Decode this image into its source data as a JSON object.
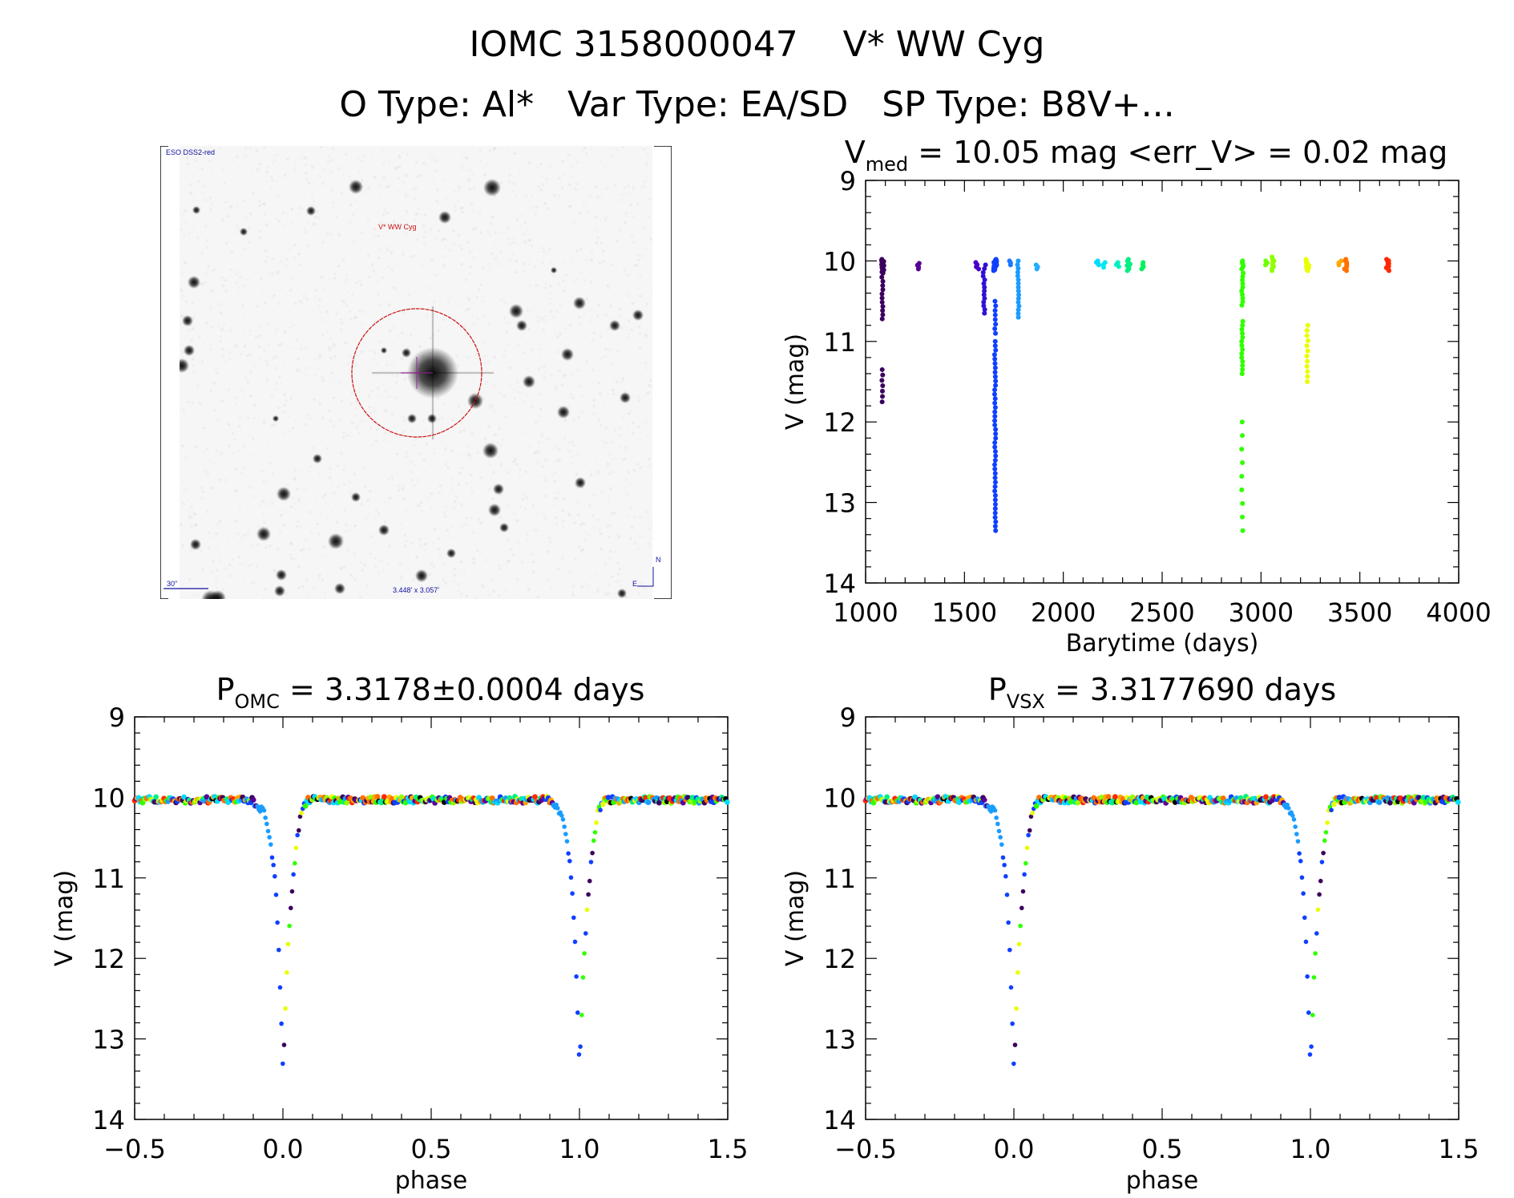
{
  "header": {
    "line1": "IOMC 3158000047    V* WW Cyg",
    "line2": "O Type: Al*   Var Type: EA/SD   SP Type: B8V+..."
  },
  "sky_image": {
    "survey_label": "ESO DSS2-red",
    "target_label": "V* WW Cyg",
    "scale_label": "30\"",
    "fov_label": "3.448' x 3.057'",
    "north_label": "N",
    "east_label": "E"
  },
  "colors": {
    "frame": "#000000",
    "circle": "#cc1010",
    "sky_text": "#1010a0"
  },
  "chart_data": [
    {
      "type": "scatter",
      "id": "lightcurve",
      "title_main": "V",
      "title_sub": "med",
      "title_rest": " = 10.05 mag <err_V> = 0.02 mag",
      "xlabel": "Barytime (days)",
      "ylabel": "V (mag)",
      "xlim": [
        1000,
        4000
      ],
      "ylim": [
        9,
        14
      ],
      "y_inverted": true,
      "xticks": [
        1000,
        1500,
        2000,
        2500,
        3000,
        3500,
        4000
      ],
      "yticks": [
        9,
        10,
        11,
        12,
        13,
        14
      ],
      "clusters": [
        {
          "t": 1085,
          "color": "#3c005e",
          "ranges": [
            [
              9.98,
              10.15,
              14
            ],
            [
              10.15,
              10.72,
              12
            ],
            [
              11.35,
              11.75,
              7
            ]
          ]
        },
        {
          "t": 1270,
          "color": "#5a0096",
          "ranges": [
            [
              10.03,
              10.1,
              4
            ]
          ]
        },
        {
          "t": 1565,
          "color": "#4a00c8",
          "ranges": [
            [
              10.02,
              10.1,
              4
            ]
          ]
        },
        {
          "t": 1600,
          "color": "#3010d8",
          "ranges": [
            [
              10.05,
              10.65,
              14
            ]
          ]
        },
        {
          "t": 1655,
          "color": "#1040ff",
          "ranges": [
            [
              9.98,
              10.12,
              16
            ],
            [
              10.5,
              10.9,
              8
            ],
            [
              11.0,
              13.35,
              44
            ]
          ]
        },
        {
          "t": 1735,
          "color": "#1a78ff",
          "ranges": [
            [
              10.0,
              10.05,
              3
            ]
          ]
        },
        {
          "t": 1775,
          "color": "#1a9cff",
          "ranges": [
            [
              10.0,
              10.7,
              16
            ]
          ]
        },
        {
          "t": 1870,
          "color": "#20acff",
          "ranges": [
            [
              10.05,
              10.1,
              3
            ]
          ]
        },
        {
          "t": 2175,
          "color": "#00dcff",
          "ranges": [
            [
              10.0,
              10.05,
              4
            ]
          ]
        },
        {
          "t": 2205,
          "color": "#00e8f0",
          "ranges": [
            [
              10.02,
              10.08,
              3
            ]
          ]
        },
        {
          "t": 2275,
          "color": "#00f0c0",
          "ranges": [
            [
              10.02,
              10.07,
              3
            ]
          ]
        },
        {
          "t": 2330,
          "color": "#00f080",
          "ranges": [
            [
              9.98,
              10.12,
              8
            ]
          ]
        },
        {
          "t": 2400,
          "color": "#00f060",
          "ranges": [
            [
              10.02,
              10.1,
              4
            ]
          ]
        },
        {
          "t": 2905,
          "color": "#30ff00",
          "ranges": [
            [
              10.0,
              10.1,
              6
            ],
            [
              10.15,
              10.55,
              10
            ],
            [
              10.75,
              11.4,
              14
            ],
            [
              12.0,
              13.35,
              9
            ]
          ]
        },
        {
          "t": 3030,
          "color": "#70ff00",
          "ranges": [
            [
              10.0,
              10.05,
              3
            ]
          ]
        },
        {
          "t": 3060,
          "color": "#90ff00",
          "ranges": [
            [
              9.95,
              10.12,
              8
            ]
          ]
        },
        {
          "t": 3235,
          "color": "#e8ff00",
          "ranges": [
            [
              9.98,
              10.12,
              12
            ],
            [
              10.8,
              11.5,
              12
            ]
          ]
        },
        {
          "t": 3400,
          "color": "#ffa800",
          "ranges": [
            [
              10.0,
              10.05,
              3
            ]
          ]
        },
        {
          "t": 3430,
          "color": "#ff7000",
          "ranges": [
            [
              9.98,
              10.12,
              8
            ]
          ]
        },
        {
          "t": 3640,
          "color": "#ff2800",
          "ranges": [
            [
              9.98,
              10.12,
              9
            ]
          ]
        }
      ]
    },
    {
      "type": "scatter",
      "id": "phase_omc",
      "title_main": "P",
      "title_sub": "OMC",
      "title_rest": " = 3.3178±0.0004 days",
      "xlabel": "phase",
      "ylabel": "V (mag)",
      "xlim": [
        -0.5,
        1.5
      ],
      "ylim": [
        9,
        14
      ],
      "y_inverted": true,
      "xticks": [
        -0.5,
        0.0,
        0.5,
        1.0,
        1.5
      ],
      "xtick_labels": [
        "−0.5",
        "0.0",
        "0.5",
        "1.0",
        "1.5"
      ],
      "yticks": [
        9,
        10,
        11,
        12,
        13,
        14
      ],
      "baseline_mag": 10.03,
      "eclipse_profile": [
        [
          -0.1,
          10.05
        ],
        [
          -0.06,
          10.2
        ],
        [
          -0.045,
          10.5
        ],
        [
          -0.035,
          10.75
        ],
        [
          -0.025,
          11.1
        ],
        [
          -0.015,
          11.8
        ],
        [
          -0.007,
          12.6
        ],
        [
          0.0,
          13.35
        ],
        [
          0.006,
          12.9
        ],
        [
          0.012,
          12.2
        ],
        [
          0.02,
          11.7
        ],
        [
          0.03,
          11.2
        ],
        [
          0.045,
          10.6
        ],
        [
          0.06,
          10.2
        ],
        [
          0.08,
          10.05
        ]
      ],
      "point_colors": [
        "#3c005e",
        "#5a0096",
        "#1040ff",
        "#1a9cff",
        "#00dcff",
        "#00f080",
        "#30ff00",
        "#90ff00",
        "#e8ff00",
        "#ffa800",
        "#ff7000",
        "#ff2800",
        "#000000"
      ]
    },
    {
      "type": "scatter",
      "id": "phase_vsx",
      "title_main": "P",
      "title_sub": "VSX",
      "title_rest": " = 3.3177690 days",
      "xlabel": "phase",
      "ylabel": "V (mag)",
      "xlim": [
        -0.5,
        1.5
      ],
      "ylim": [
        9,
        14
      ],
      "y_inverted": true,
      "xticks": [
        -0.5,
        0.0,
        0.5,
        1.0,
        1.5
      ],
      "xtick_labels": [
        "−0.5",
        "0.0",
        "0.5",
        "1.0",
        "1.5"
      ],
      "yticks": [
        9,
        10,
        11,
        12,
        13,
        14
      ],
      "baseline_mag": 10.03,
      "eclipse_profile": [
        [
          -0.1,
          10.05
        ],
        [
          -0.06,
          10.2
        ],
        [
          -0.045,
          10.5
        ],
        [
          -0.035,
          10.75
        ],
        [
          -0.025,
          11.1
        ],
        [
          -0.015,
          11.8
        ],
        [
          -0.007,
          12.6
        ],
        [
          0.0,
          13.35
        ],
        [
          0.006,
          12.9
        ],
        [
          0.012,
          12.2
        ],
        [
          0.02,
          11.7
        ],
        [
          0.03,
          11.2
        ],
        [
          0.045,
          10.6
        ],
        [
          0.06,
          10.2
        ],
        [
          0.08,
          10.05
        ]
      ],
      "point_colors": [
        "#3c005e",
        "#5a0096",
        "#1040ff",
        "#1a9cff",
        "#00dcff",
        "#00f080",
        "#30ff00",
        "#90ff00",
        "#e8ff00",
        "#ffa800",
        "#ff7000",
        "#ff2800",
        "#000000"
      ]
    }
  ]
}
